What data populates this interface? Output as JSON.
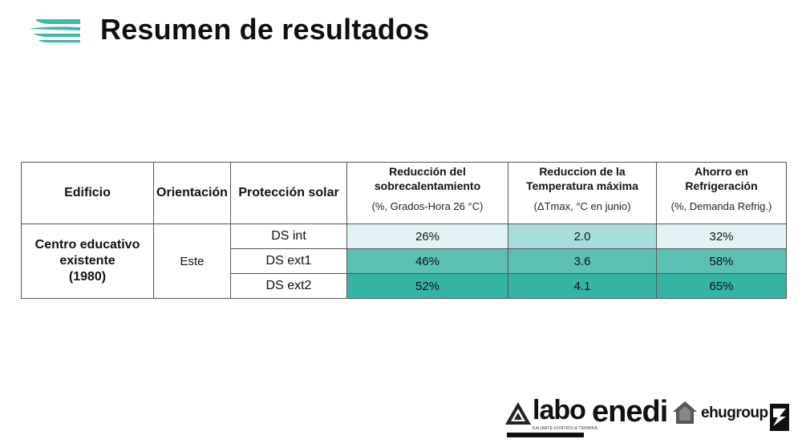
{
  "page": {
    "title": "Resumen de resultados"
  },
  "table": {
    "headers": {
      "building": "Edificio",
      "orientation": "Orientación",
      "protection": "Protección solar",
      "metrics": [
        {
          "name_l1": "Reducción del",
          "name_l2": "sobrecalentamiento",
          "unit": "(%, Grados-Hora 26 °C)"
        },
        {
          "name_l1": "Reduccion de la",
          "name_l2": "Temperatura máxima",
          "unit": "(ΔTmax, °C en junio)"
        },
        {
          "name_l1": "Ahorro en",
          "name_l2": "Refrigeración",
          "unit": "(%, Demanda Refrig.)"
        }
      ]
    },
    "building": {
      "l1": "Centro educativo",
      "l2": "existente",
      "l3": "(1980)"
    },
    "orientation": "Este",
    "rows": [
      {
        "protection": "DS int",
        "values": [
          "26%",
          "2.0",
          "32%"
        ]
      },
      {
        "protection": "DS ext1",
        "values": [
          "46%",
          "3.6",
          "58%"
        ]
      },
      {
        "protection": "DS ext2",
        "values": [
          "52%",
          "4.1",
          "65%"
        ]
      }
    ]
  },
  "logos": {
    "labo": {
      "word": "labo",
      "subtitle": "KALIBATE·KONTROLA TERMIKA"
    },
    "enedi": {
      "word": "enedi"
    },
    "ehu": {
      "word": "ehugroup"
    }
  },
  "colors": {
    "accent": "#35b3a5",
    "row1": "#e1f3f4",
    "row2": "#5bbfb4",
    "row3": "#35b3a5"
  }
}
